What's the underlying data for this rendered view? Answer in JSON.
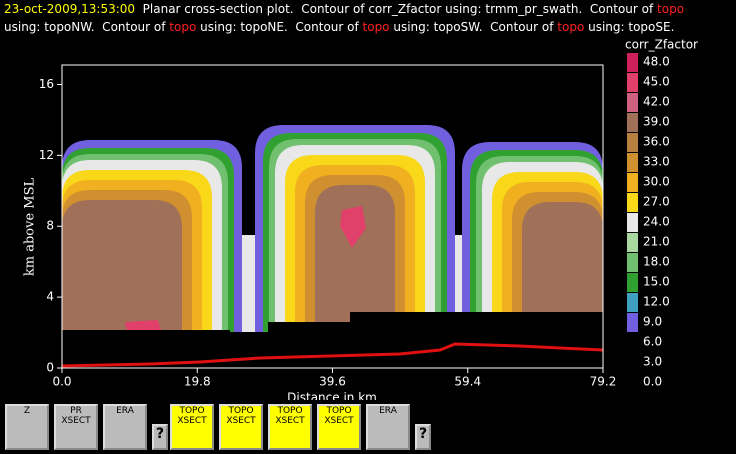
{
  "chart_data": {
    "type": "contour",
    "title_line1": [
      {
        "text": "23-oct-2009,13:53:00",
        "color": "#ffff00"
      },
      {
        "text": "  Planar cross-section plot.  Contour of corr_Zfactor using: trmm_pr_swath.  Contour of ",
        "color": "#ffffff"
      },
      {
        "text": "topo",
        "color": "#ff2020"
      }
    ],
    "title_line2": [
      {
        "text": "using: topoNW.  Contour of ",
        "color": "#ffffff"
      },
      {
        "text": "topo",
        "color": "#ff2020"
      },
      {
        "text": " using: topoNE.  Contour of ",
        "color": "#ffffff"
      },
      {
        "text": "topo",
        "color": "#ff2020"
      },
      {
        "text": " using: topoSW.  Contour of ",
        "color": "#ffffff"
      },
      {
        "text": "topo",
        "color": "#ff2020"
      },
      {
        "text": " using: topoSE.",
        "color": "#ffffff"
      }
    ],
    "x_label": "Distance in km",
    "y_label": "km above MSL",
    "xlim": [
      0,
      79.2
    ],
    "ylim": [
      0,
      17.1
    ],
    "xticks": [
      {
        "value": 0,
        "label": "0.0"
      },
      19.8,
      39.6,
      59.4,
      79.2
    ],
    "yticks": [
      0,
      4,
      8,
      12,
      16
    ],
    "colorbar_title": "corr_Zfactor",
    "levels": [
      {
        "value": 48,
        "label": "48.0"
      },
      {
        "value": 45,
        "label": "45.0"
      },
      {
        "value": 42,
        "label": "42.0"
      },
      {
        "value": 39,
        "label": "39.0"
      },
      {
        "value": 36,
        "label": "36.0"
      },
      {
        "value": 33,
        "label": "33.0"
      },
      {
        "value": 30,
        "label": "30.0"
      },
      {
        "value": 27,
        "label": "27.0"
      },
      {
        "value": 24,
        "label": "24.0"
      },
      {
        "value": 21,
        "label": "21.0"
      },
      {
        "value": 18,
        "label": "18.0"
      },
      {
        "value": 15,
        "label": "15.0"
      },
      {
        "value": 12,
        "label": "12.0"
      },
      {
        "value": 9,
        "label": "9.0"
      },
      {
        "value": 6,
        "label": "6.0"
      },
      {
        "value": 3,
        "label": "3.0"
      },
      {
        "value": 0,
        "label": "0.0"
      }
    ],
    "level_colors": [
      "#d0205a",
      "#e0406a",
      "#d06080",
      "#a07058",
      "#b88040",
      "#d09030",
      "#f0b020",
      "#f8d818",
      "#e8e8e8",
      "#a8d8a0",
      "#70c070",
      "#30a030",
      "#40a0c0",
      "#7060e0"
    ],
    "topo_color": "#e01010"
  },
  "toolbar": [
    "Z",
    "PR XSECT",
    "ERA",
    "?",
    "TOPO XSECT",
    "TOPO XSECT",
    "TOPO XSECT",
    "TOPO XSECT",
    "ERA",
    "?"
  ]
}
